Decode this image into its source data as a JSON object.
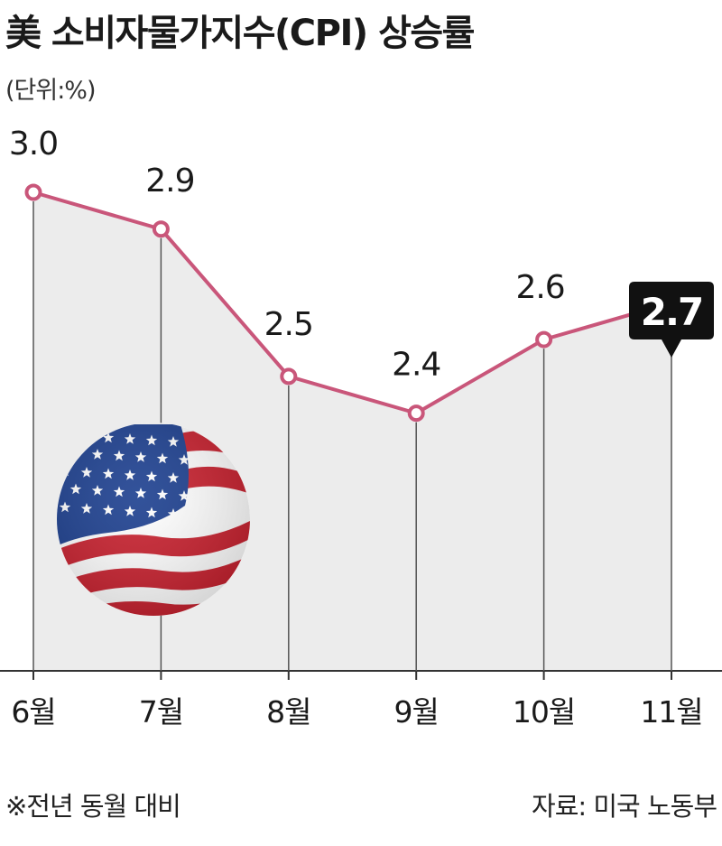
{
  "header": {
    "title": "美 소비자물가지수(CPI) 상승률",
    "unit": "(단위:%)"
  },
  "footer": {
    "note": "※전년 동월 대비",
    "source": "자료: 미국 노동부"
  },
  "colors": {
    "line": "#c9567a",
    "area": "#ececec",
    "axis": "#333333",
    "highlight_box": "#111111"
  },
  "icons": [
    "us-flag-icon"
  ],
  "chart_data": {
    "type": "line",
    "categories": [
      "6월",
      "7월",
      "8월",
      "9월",
      "10월",
      "11월"
    ],
    "values": [
      3.0,
      2.9,
      2.5,
      2.4,
      2.6,
      2.7
    ],
    "value_labels": [
      "3.0",
      "2.9",
      "2.5",
      "2.4",
      "2.6",
      "2.7"
    ],
    "highlight_index": 5,
    "ylim": [
      1.7,
      3.0
    ],
    "grid": false,
    "area_fill": true
  }
}
